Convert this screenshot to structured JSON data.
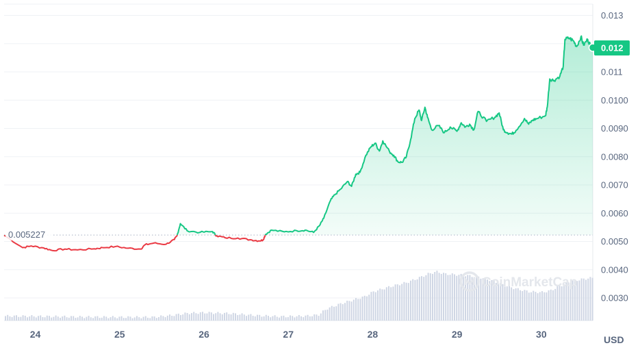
{
  "chart_data": {
    "type": "line",
    "unit": "USD",
    "reference_price": 0.005227,
    "reference_label": "0.005227",
    "current_price": 0.01185,
    "current_label": "0.012",
    "ylim": [
      0.0022,
      0.0134
    ],
    "y_ticks": [
      {
        "value": 0.003,
        "label": "0.0030"
      },
      {
        "value": 0.004,
        "label": "0.0040"
      },
      {
        "value": 0.005,
        "label": "0.0050"
      },
      {
        "value": 0.006,
        "label": "0.0060"
      },
      {
        "value": 0.007,
        "label": "0.0070"
      },
      {
        "value": 0.008,
        "label": "0.0080"
      },
      {
        "value": 0.009,
        "label": "0.0090"
      },
      {
        "value": 0.01,
        "label": "0.0100"
      },
      {
        "value": 0.011,
        "label": "0.011"
      },
      {
        "value": 0.012,
        "label": "0.012"
      },
      {
        "value": 0.013,
        "label": "0.013"
      }
    ],
    "xlim": [
      23.63,
      30.61
    ],
    "x_ticks": [
      {
        "value": 24,
        "label": "24"
      },
      {
        "value": 25,
        "label": "25"
      },
      {
        "value": 26,
        "label": "26"
      },
      {
        "value": 27,
        "label": "27"
      },
      {
        "value": 28,
        "label": "28"
      },
      {
        "value": 29,
        "label": "29"
      },
      {
        "value": 30,
        "label": "30"
      }
    ],
    "price_series": {
      "x": [
        23.63,
        23.85,
        23.95,
        24.1,
        24.2,
        24.35,
        24.5,
        24.7,
        24.8,
        24.95,
        25.1,
        25.25,
        25.3,
        25.4,
        25.55,
        25.65,
        25.68,
        25.72,
        25.8,
        25.95,
        26.1,
        26.15,
        26.25,
        26.4,
        26.55,
        26.65,
        26.7,
        26.73,
        26.8,
        26.95,
        27.1,
        27.2,
        27.3,
        27.37,
        27.42,
        27.5,
        27.55,
        27.62,
        27.7,
        27.75,
        27.8,
        27.85,
        27.92,
        27.98,
        28.03,
        28.08,
        28.12,
        28.2,
        28.25,
        28.3,
        28.35,
        28.4,
        28.45,
        28.5,
        28.55,
        28.58,
        28.62,
        28.65,
        28.7,
        28.78,
        28.85,
        28.92,
        29.0,
        29.05,
        29.1,
        29.15,
        29.2,
        29.25,
        29.35,
        29.45,
        29.5,
        29.55,
        29.6,
        29.65,
        29.7,
        29.8,
        29.85,
        29.9,
        29.95,
        30.05,
        30.07,
        30.1,
        30.15,
        30.22,
        30.26,
        30.28,
        30.33,
        30.38,
        30.42,
        30.47,
        30.5,
        30.55,
        30.58,
        30.61
      ],
      "y": [
        0.00522,
        0.00478,
        0.00484,
        0.00477,
        0.00468,
        0.00473,
        0.0047,
        0.00474,
        0.00478,
        0.00482,
        0.00476,
        0.00473,
        0.00488,
        0.00494,
        0.0049,
        0.00507,
        0.0052,
        0.00563,
        0.00538,
        0.00532,
        0.00535,
        0.0052,
        0.00513,
        0.00512,
        0.00506,
        0.00502,
        0.00505,
        0.00525,
        0.0054,
        0.00534,
        0.00538,
        0.0054,
        0.00532,
        0.00556,
        0.00582,
        0.00645,
        0.00665,
        0.00685,
        0.00712,
        0.00695,
        0.00738,
        0.00745,
        0.00805,
        0.00835,
        0.00848,
        0.0082,
        0.00856,
        0.00818,
        0.00805,
        0.00782,
        0.0078,
        0.008,
        0.0086,
        0.00935,
        0.00965,
        0.00928,
        0.00975,
        0.0094,
        0.00895,
        0.0091,
        0.00885,
        0.00905,
        0.0089,
        0.0092,
        0.00905,
        0.00915,
        0.00895,
        0.0096,
        0.00925,
        0.0094,
        0.00955,
        0.00895,
        0.00885,
        0.0088,
        0.00893,
        0.00935,
        0.00915,
        0.0093,
        0.00935,
        0.00945,
        0.00975,
        0.01075,
        0.0107,
        0.01085,
        0.0112,
        0.01215,
        0.0122,
        0.0121,
        0.0119,
        0.01225,
        0.01195,
        0.01215,
        0.01195,
        0.01185
      ]
    },
    "volume_series": {
      "x": [
        23.63,
        24.0,
        24.5,
        25.0,
        25.4,
        25.6,
        25.8,
        26.0,
        26.3,
        26.6,
        26.9,
        27.2,
        27.35,
        27.45,
        27.6,
        27.75,
        27.9,
        28.0,
        28.2,
        28.4,
        28.55,
        28.65,
        28.75,
        28.85,
        28.95,
        29.1,
        29.25,
        29.4,
        29.55,
        29.7,
        29.85,
        30.0,
        30.1,
        30.2,
        30.3,
        30.45,
        30.61
      ],
      "y": [
        0.00236,
        0.00235,
        0.00233,
        0.00232,
        0.00232,
        0.00238,
        0.00246,
        0.00248,
        0.00245,
        0.00238,
        0.00234,
        0.00236,
        0.0024,
        0.00262,
        0.00278,
        0.00292,
        0.00305,
        0.00322,
        0.0034,
        0.00355,
        0.00372,
        0.00385,
        0.00393,
        0.00385,
        0.00383,
        0.0038,
        0.00374,
        0.00362,
        0.00345,
        0.00332,
        0.00322,
        0.0032,
        0.00326,
        0.0034,
        0.00355,
        0.00365,
        0.00372
      ]
    }
  },
  "watermark": {
    "text": "CoinMarketCap",
    "icon": "coinmarketcap-logo-icon"
  },
  "colors": {
    "up": "#16c784",
    "down": "#ea3943",
    "grid": "#eff2f5",
    "volume": "#cfd6e4",
    "current_badge": "#16c784"
  }
}
